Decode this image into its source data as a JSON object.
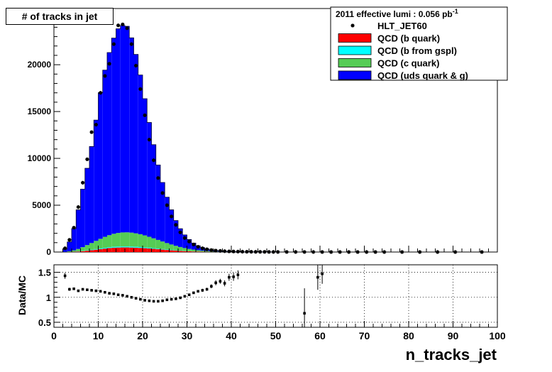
{
  "chart_data": [
    {
      "type": "histogram",
      "title": "# of tracks in jet",
      "xlabel": "n_tracks_jet",
      "ylabel": "",
      "xlim": [
        0,
        100
      ],
      "ylim": [
        0,
        26000
      ],
      "yticks": [
        0,
        5000,
        10000,
        15000,
        20000,
        25000
      ],
      "xticks": [
        0,
        10,
        20,
        30,
        40,
        50,
        60,
        70,
        80,
        90,
        100
      ],
      "bin_width": 1,
      "legend": {
        "header": "2011 effective lumi : 0.056  pb",
        "header_sup": "-1",
        "position": "top-right",
        "entries": [
          {
            "label": "HLT_JET60",
            "marker": "star",
            "color": "#000000"
          },
          {
            "label": "QCD (b quark)",
            "color": "#ff0000"
          },
          {
            "label": "QCD (b from gspl)",
            "color": "#00ffff"
          },
          {
            "label": "QCD (c quark)",
            "color": "#55cc55"
          },
          {
            "label": "QCD (uds quark & g)",
            "color": "#0000ff"
          }
        ]
      },
      "stack_series": [
        {
          "name": "QCD (b quark)",
          "color": "#ff0000",
          "x": [
            2,
            3,
            4,
            5,
            6,
            7,
            8,
            9,
            10,
            11,
            12,
            13,
            14,
            15,
            16,
            17,
            18,
            19,
            20,
            21,
            22,
            23,
            24,
            25,
            26,
            27,
            28,
            29,
            30,
            31,
            32,
            33,
            34,
            35,
            36,
            37,
            38,
            39,
            40
          ],
          "values": [
            5,
            15,
            30,
            55,
            90,
            140,
            190,
            250,
            310,
            370,
            420,
            460,
            480,
            490,
            490,
            480,
            460,
            440,
            410,
            380,
            340,
            300,
            260,
            220,
            185,
            150,
            120,
            95,
            75,
            58,
            44,
            33,
            25,
            18,
            13,
            9,
            7,
            5,
            3
          ]
        },
        {
          "name": "QCD (b from gspl)",
          "color": "#00ffff",
          "x": [
            2,
            3,
            4,
            5,
            6,
            7,
            8,
            9,
            10,
            11,
            12,
            13,
            14,
            15,
            16,
            17,
            18,
            19,
            20,
            21,
            22,
            23,
            24,
            25,
            26,
            27,
            28,
            29,
            30,
            31,
            32,
            33,
            34,
            35,
            36,
            37,
            38,
            39,
            40
          ],
          "values": [
            2,
            6,
            12,
            20,
            30,
            40,
            52,
            62,
            72,
            82,
            90,
            96,
            100,
            102,
            102,
            100,
            96,
            92,
            86,
            80,
            72,
            64,
            56,
            48,
            40,
            33,
            27,
            21,
            17,
            13,
            10,
            8,
            6,
            4,
            3,
            2,
            2,
            1,
            1
          ]
        },
        {
          "name": "QCD (c quark)",
          "color": "#55cc55",
          "x": [
            2,
            3,
            4,
            5,
            6,
            7,
            8,
            9,
            10,
            11,
            12,
            13,
            14,
            15,
            16,
            17,
            18,
            19,
            20,
            21,
            22,
            23,
            24,
            25,
            26,
            27,
            28,
            29,
            30,
            31,
            32,
            33,
            34,
            35,
            36,
            37,
            38,
            39,
            40
          ],
          "values": [
            15,
            60,
            140,
            250,
            400,
            560,
            720,
            880,
            1030,
            1170,
            1290,
            1390,
            1460,
            1500,
            1510,
            1490,
            1440,
            1370,
            1280,
            1170,
            1050,
            930,
            810,
            690,
            580,
            480,
            390,
            310,
            240,
            185,
            140,
            105,
            78,
            57,
            42,
            30,
            22,
            15,
            10
          ]
        },
        {
          "name": "QCD (uds quark & g)",
          "color": "#0000ff",
          "x": [
            2,
            3,
            4,
            5,
            6,
            7,
            8,
            9,
            10,
            11,
            12,
            13,
            14,
            15,
            16,
            17,
            18,
            19,
            20,
            21,
            22,
            23,
            24,
            25,
            26,
            27,
            28,
            29,
            30,
            31,
            32,
            33,
            34,
            35,
            36,
            37,
            38,
            39,
            40,
            41,
            42,
            43,
            44,
            45,
            46,
            47,
            48,
            49,
            50
          ],
          "values": [
            280,
            1000,
            2320,
            4180,
            6200,
            8200,
            10300,
            12900,
            15600,
            17800,
            19500,
            20900,
            21800,
            22100,
            22000,
            20800,
            19100,
            17000,
            14600,
            12200,
            10000,
            8000,
            6300,
            4900,
            3700,
            2700,
            1950,
            1400,
            1000,
            700,
            480,
            330,
            220,
            150,
            100,
            70,
            45,
            30,
            22,
            15,
            11,
            8,
            6,
            5,
            4,
            3,
            2,
            2,
            1
          ]
        }
      ],
      "data_series": {
        "name": "HLT_JET60",
        "x": [
          2,
          3,
          4,
          5,
          6,
          7,
          8,
          9,
          10,
          11,
          12,
          13,
          14,
          15,
          16,
          17,
          18,
          19,
          20,
          21,
          22,
          23,
          24,
          25,
          26,
          27,
          28,
          29,
          30,
          31,
          32,
          33,
          34,
          35,
          36,
          37,
          38,
          39,
          40,
          41,
          42,
          43,
          44,
          45,
          46,
          47,
          48,
          49,
          50,
          52,
          54,
          56,
          58,
          60,
          62,
          64,
          66,
          68,
          70,
          72,
          74,
          78,
          82,
          86,
          90,
          96
        ],
        "values": [
          400,
          1300,
          2600,
          4800,
          7400,
          9900,
          12800,
          13600,
          17000,
          18800,
          20100,
          22200,
          24200,
          24300,
          23900,
          22200,
          19900,
          17400,
          14600,
          12000,
          9800,
          7900,
          6300,
          5000,
          3800,
          2900,
          2100,
          1500,
          1120,
          800,
          560,
          400,
          290,
          210,
          150,
          120,
          90,
          70,
          55,
          45,
          38,
          30,
          25,
          20,
          18,
          15,
          12,
          10,
          9,
          8,
          6,
          5,
          5,
          4,
          4,
          3,
          3,
          3,
          3,
          2,
          2,
          2,
          2,
          2,
          2,
          2
        ]
      }
    },
    {
      "type": "scatter",
      "title": "",
      "xlabel": "n_tracks_jet",
      "ylabel": "Data/MC",
      "xlim": [
        0,
        100
      ],
      "ylim": [
        0.4,
        1.65
      ],
      "yticks": [
        0.5,
        1,
        1.5
      ],
      "ytick_labels": [
        "0.5",
        "1",
        "1.5"
      ],
      "xticks": [
        0,
        10,
        20,
        30,
        40,
        50,
        60,
        70,
        80,
        90,
        100
      ],
      "grid": true,
      "series": [
        {
          "name": "Data/MC",
          "x": [
            2.5,
            3.5,
            4.5,
            5.5,
            6.5,
            7.5,
            8.5,
            9.5,
            10.5,
            11.5,
            12.5,
            13.5,
            14.5,
            15.5,
            16.5,
            17.5,
            18.5,
            19.5,
            20.5,
            21.5,
            22.5,
            23.5,
            24.5,
            25.5,
            26.5,
            27.5,
            28.5,
            29.5,
            30.5,
            31.5,
            32.5,
            33.5,
            34.5,
            35.5,
            36.5,
            37.5,
            38.5,
            39.5,
            40.5,
            41.5,
            56.5,
            59.5,
            60.5
          ],
          "y": [
            1.43,
            1.16,
            1.17,
            1.13,
            1.16,
            1.15,
            1.14,
            1.13,
            1.12,
            1.1,
            1.08,
            1.07,
            1.05,
            1.04,
            1.02,
            1.0,
            0.98,
            0.96,
            0.94,
            0.93,
            0.92,
            0.92,
            0.93,
            0.95,
            0.96,
            0.97,
            0.99,
            1.02,
            1.05,
            1.09,
            1.12,
            1.14,
            1.16,
            1.22,
            1.29,
            1.32,
            1.28,
            1.4,
            1.41,
            1.45,
            0.68,
            1.4,
            1.47
          ],
          "err": [
            0.06,
            0.03,
            0.02,
            0.01,
            0.01,
            0.01,
            0.01,
            0.01,
            0.01,
            0.01,
            0.01,
            0.01,
            0.01,
            0.01,
            0.01,
            0.01,
            0.01,
            0.01,
            0.01,
            0.01,
            0.01,
            0.01,
            0.01,
            0.01,
            0.01,
            0.01,
            0.01,
            0.01,
            0.02,
            0.02,
            0.02,
            0.03,
            0.03,
            0.04,
            0.05,
            0.05,
            0.06,
            0.07,
            0.08,
            0.09,
            0.5,
            0.25,
            0.2
          ]
        }
      ]
    }
  ]
}
